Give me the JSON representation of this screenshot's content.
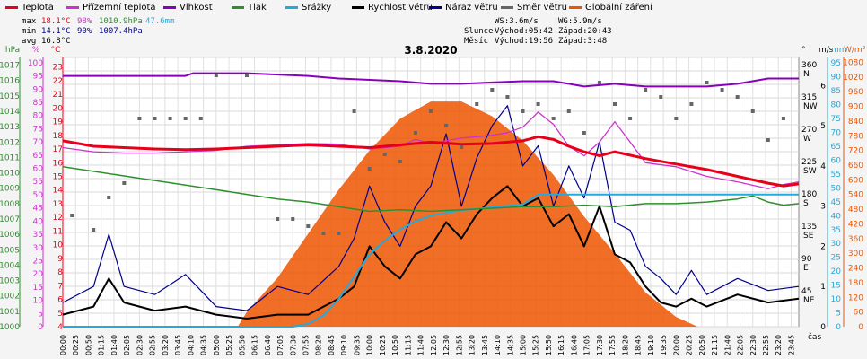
{
  "legend": [
    {
      "label": "Teplota",
      "color": "#e8001a"
    },
    {
      "label": "Přízemní teplota",
      "color": "#cc33cc"
    },
    {
      "label": "Vlhkost",
      "color": "#8800bb"
    },
    {
      "label": "Tlak",
      "color": "#2f8f2f"
    },
    {
      "label": "Srážky",
      "color": "#22aadd"
    },
    {
      "label": "Rychlost větru",
      "color": "#000000"
    },
    {
      "label": "Náraz větru",
      "color": "#00008b"
    },
    {
      "label": "Směr větru",
      "color": "#666666"
    },
    {
      "label": "Globální záření",
      "color": "#ee5500"
    }
  ],
  "stats": {
    "max_label": "max",
    "max_temp": "18.1°C",
    "max_hum": "98%",
    "max_press": "1010.9hPa",
    "max_rain": "47.6mm",
    "min_label": "min",
    "min_temp": "14.1°C",
    "min_hum": "90%",
    "min_press": "1007.4hPa",
    "avg_label": "avg",
    "avg_temp": "16.8°C"
  },
  "info": {
    "ws": "WS:3.6m/s",
    "wg": "WG:5.9m/s",
    "slunce": "Slunce",
    "slunce_vychod": "Východ:05:42",
    "slunce_zapad": "Západ:20:43",
    "mesic": "Měsíc",
    "mesic_vychod": "Východ:19:56",
    "mesic_zapad": "Západ:3:48"
  },
  "chart_data": {
    "type": "line",
    "title": "3.8.2020",
    "xlabel": "čas",
    "x_ticks": [
      "00:00",
      "00:25",
      "00:50",
      "01:15",
      "01:40",
      "02:05",
      "02:30",
      "02:55",
      "03:20",
      "03:45",
      "04:10",
      "04:35",
      "05:00",
      "05:25",
      "05:50",
      "06:15",
      "06:40",
      "07:05",
      "07:30",
      "07:55",
      "08:20",
      "08:45",
      "09:10",
      "09:35",
      "10:00",
      "10:25",
      "10:50",
      "11:15",
      "11:40",
      "12:05",
      "12:30",
      "12:55",
      "13:20",
      "13:45",
      "14:10",
      "14:35",
      "15:00",
      "15:25",
      "15:50",
      "16:15",
      "16:40",
      "17:05",
      "17:30",
      "17:55",
      "18:20",
      "18:45",
      "19:10",
      "19:35",
      "20:00",
      "20:25",
      "20:50",
      "21:15",
      "21:40",
      "22:05",
      "22:30",
      "22:55",
      "23:20",
      "23:45"
    ],
    "axes": {
      "hpa": {
        "label": "hPa",
        "color": "#2f8f2f",
        "ticks": [
          "1000",
          "1001",
          "1002",
          "1003",
          "1004",
          "1005",
          "1006",
          "1007",
          "1008",
          "1009",
          "1010",
          "1011",
          "1012",
          "1013",
          "1014",
          "1015",
          "1016",
          "1017"
        ]
      },
      "pct": {
        "label": "%",
        "color": "#cc33cc",
        "ticks": [
          "0",
          "5",
          "10",
          "15",
          "20",
          "25",
          "30",
          "35",
          "40",
          "45",
          "50",
          "55",
          "60",
          "65",
          "70",
          "75",
          "80",
          "85",
          "90",
          "95",
          "100"
        ]
      },
      "degc": {
        "label": "°C",
        "color": "#e8001a",
        "ticks": [
          "4",
          "5",
          "6",
          "7",
          "8",
          "9",
          "10",
          "11",
          "12",
          "13",
          "14",
          "15",
          "16",
          "17",
          "18",
          "19",
          "20",
          "21",
          "22",
          "23"
        ]
      },
      "dir": {
        "label": "°",
        "ticks": [
          {
            "v": "360",
            "d": "N"
          },
          {
            "v": "315",
            "d": "NW"
          },
          {
            "v": "270",
            "d": "W"
          },
          {
            "v": "225",
            "d": "SW"
          },
          {
            "v": "180",
            "d": "S"
          },
          {
            "v": "135",
            "d": "SE"
          },
          {
            "v": "90",
            "d": "E"
          },
          {
            "v": "45",
            "d": "NE"
          }
        ]
      },
      "ms": {
        "label": "m/s",
        "ticks": [
          "0",
          "1",
          "2",
          "3",
          "4",
          "5",
          "6"
        ]
      },
      "mm": {
        "label": "mm",
        "color": "#22aadd",
        "ticks": [
          "0",
          "5",
          "10",
          "15",
          "20",
          "25",
          "30",
          "35",
          "40",
          "45",
          "50",
          "55",
          "60",
          "65",
          "70",
          "75",
          "80",
          "85",
          "90",
          "95"
        ]
      },
      "wm": {
        "label": "W/m²",
        "color": "#ee5500",
        "ticks": [
          "0",
          "60",
          "120",
          "180",
          "240",
          "300",
          "360",
          "420",
          "480",
          "540",
          "600",
          "660",
          "720",
          "780",
          "840",
          "900",
          "960",
          "1020",
          "1080"
        ]
      }
    },
    "series": [
      {
        "name": "Teplota",
        "color": "#e8001a",
        "unit": "°C",
        "x": [
          0,
          0.5,
          1,
          2,
          3,
          4,
          5,
          6,
          7,
          8,
          9,
          10,
          11,
          12,
          13,
          14,
          15,
          15.5,
          16,
          16.5,
          17,
          17.5,
          18,
          19,
          20,
          21,
          22,
          23,
          23.5,
          24
        ],
        "y": [
          17.6,
          17.4,
          17.2,
          17.1,
          17.0,
          16.95,
          17.0,
          17.1,
          17.2,
          17.3,
          17.2,
          17.1,
          17.3,
          17.5,
          17.35,
          17.4,
          17.6,
          17.9,
          17.7,
          17.2,
          16.8,
          16.5,
          16.8,
          16.3,
          15.9,
          15.5,
          15.0,
          14.5,
          14.3,
          14.45
        ]
      },
      {
        "name": "Přízemní teplota",
        "color": "#cc33cc",
        "unit": "°C",
        "x": [
          0,
          1,
          2,
          3,
          4,
          5,
          6,
          7,
          8,
          9,
          10,
          11,
          11.5,
          12,
          12.5,
          13,
          13.5,
          14,
          14.5,
          15,
          15.5,
          16,
          16.5,
          17,
          17.5,
          18,
          18.5,
          19,
          20,
          21,
          22,
          23,
          23.5,
          24
        ],
        "y": [
          17.1,
          16.8,
          16.7,
          16.7,
          16.8,
          16.9,
          17.2,
          17.3,
          17.4,
          17.35,
          17.0,
          17.2,
          17.7,
          17.4,
          17.6,
          17.8,
          17.9,
          18.0,
          18.2,
          18.6,
          19.7,
          18.8,
          17.2,
          16.5,
          17.5,
          19.0,
          17.5,
          16.0,
          15.7,
          15.0,
          14.6,
          14.1,
          14.4,
          14.6
        ]
      },
      {
        "name": "Vlhkost",
        "color": "#8800bb",
        "unit": "%",
        "x": [
          0,
          2,
          4,
          4.25,
          6,
          8,
          9,
          11,
          12,
          13,
          14,
          15,
          16,
          16.5,
          17,
          18,
          19,
          20,
          21,
          22,
          23,
          24
        ],
        "y": [
          95,
          95,
          95,
          96,
          96,
          95,
          94,
          93,
          92,
          92,
          92.5,
          93,
          93,
          92,
          91,
          92,
          91,
          91,
          91,
          92,
          94,
          94
        ]
      },
      {
        "name": "Tlak",
        "color": "#2f8f2f",
        "unit": "hPa",
        "x": [
          0,
          1,
          2,
          3,
          4,
          5,
          6,
          7,
          8,
          9,
          10,
          11,
          12,
          13,
          14,
          15,
          16,
          17,
          18,
          19,
          20,
          21,
          22,
          22.5,
          23,
          23.5,
          24
        ],
        "y": [
          1010.4,
          1010.1,
          1009.8,
          1009.5,
          1009.2,
          1008.9,
          1008.6,
          1008.3,
          1008.1,
          1007.8,
          1007.5,
          1007.6,
          1007.5,
          1007.6,
          1007.7,
          1007.8,
          1007.8,
          1007.9,
          1007.8,
          1008.0,
          1008.0,
          1008.1,
          1008.3,
          1008.5,
          1008.1,
          1007.9,
          1008.0
        ]
      },
      {
        "name": "Srážky",
        "color": "#22aadd",
        "unit": "mm",
        "x": [
          0,
          7.5,
          8,
          8.5,
          9,
          9.5,
          10,
          10.5,
          11,
          11.5,
          12,
          12.5,
          13,
          14,
          15,
          15.5,
          16,
          18,
          20,
          22,
          24
        ],
        "y": [
          0,
          0,
          1,
          4,
          10,
          18,
          26,
          31,
          35,
          38,
          40,
          41,
          42,
          43,
          44,
          47.6,
          47.6,
          47.6,
          47.6,
          47.6,
          47.6
        ]
      },
      {
        "name": "Globální záření",
        "color": "#ee5500",
        "unit": "W/m²",
        "x": [
          5.7,
          6,
          7,
          8,
          9,
          10,
          11,
          12,
          13,
          14,
          15,
          16,
          17,
          18,
          19,
          20,
          20.7
        ],
        "y": [
          0,
          60,
          200,
          380,
          560,
          720,
          850,
          920,
          920,
          860,
          760,
          620,
          450,
          300,
          140,
          40,
          0
        ]
      },
      {
        "name": "Rychlost větru",
        "color": "#000000",
        "unit": "m/s",
        "x": [
          0,
          1,
          1.5,
          2,
          3,
          4,
          5,
          6,
          7,
          8,
          9,
          9.5,
          10,
          10.5,
          11,
          11.5,
          12,
          12.5,
          13,
          13.5,
          14,
          14.5,
          15,
          15.5,
          16,
          16.5,
          17,
          17.5,
          18,
          18.5,
          19,
          19.5,
          20,
          20.5,
          21,
          22,
          23,
          24
        ],
        "y": [
          0.3,
          0.5,
          1.2,
          0.6,
          0.4,
          0.5,
          0.3,
          0.2,
          0.3,
          0.3,
          0.7,
          1.0,
          2.0,
          1.5,
          1.2,
          1.8,
          2.0,
          2.6,
          2.2,
          2.8,
          3.2,
          3.5,
          3.0,
          3.2,
          2.5,
          2.8,
          2.0,
          3.0,
          1.8,
          1.6,
          1.0,
          0.6,
          0.5,
          0.7,
          0.5,
          0.8,
          0.6,
          0.7
        ]
      },
      {
        "name": "Náraz větru",
        "color": "#00008b",
        "unit": "m/s",
        "x": [
          0,
          1,
          1.5,
          2,
          3,
          4,
          5,
          6,
          7,
          8,
          9,
          9.5,
          10,
          10.5,
          11,
          11.5,
          12,
          12.5,
          13,
          13.5,
          14,
          14.5,
          15,
          15.5,
          16,
          16.5,
          17,
          17.5,
          18,
          18.5,
          19,
          19.5,
          20,
          20.5,
          21,
          22,
          23,
          24
        ],
        "y": [
          0.6,
          1.0,
          2.3,
          1.0,
          0.8,
          1.3,
          0.5,
          0.4,
          1.0,
          0.8,
          1.5,
          2.2,
          3.5,
          2.6,
          2.0,
          3.0,
          3.5,
          4.8,
          3.0,
          4.2,
          5.0,
          5.5,
          4.0,
          4.5,
          3.0,
          4.0,
          3.2,
          4.6,
          2.6,
          2.4,
          1.5,
          1.2,
          0.8,
          1.4,
          0.8,
          1.2,
          0.9,
          1.0
        ]
      },
      {
        "name": "Směr větru",
        "color": "#666666",
        "unit": "°",
        "x": [
          0.3,
          1.0,
          1.5,
          2.0,
          2.5,
          3.0,
          3.5,
          4.0,
          4.5,
          5.0,
          6.0,
          7.0,
          7.5,
          8.0,
          8.5,
          9.0,
          9.5,
          10.0,
          10.5,
          11.0,
          11.5,
          12.0,
          12.5,
          13.0,
          13.5,
          14.0,
          14.5,
          15.0,
          15.5,
          16.0,
          16.5,
          17.0,
          17.5,
          18.0,
          18.5,
          19.0,
          19.5,
          20.0,
          20.5,
          21.0,
          21.5,
          22.0,
          22.5,
          23.0,
          23.5
        ],
        "y": [
          155,
          135,
          180,
          200,
          290,
          290,
          290,
          290,
          290,
          350,
          350,
          150,
          150,
          140,
          130,
          130,
          300,
          220,
          240,
          230,
          270,
          300,
          280,
          250,
          310,
          330,
          320,
          300,
          310,
          290,
          300,
          270,
          340,
          310,
          290,
          330,
          320,
          290,
          310,
          340,
          330,
          320,
          300,
          260,
          290
        ]
      }
    ],
    "daily_temp_range": [
      14.1,
      18.1
    ]
  }
}
